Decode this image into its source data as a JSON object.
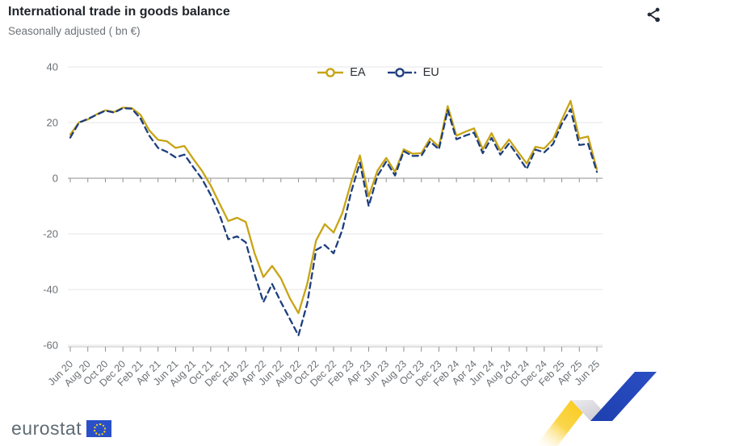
{
  "header": {
    "title": "International trade in goods balance",
    "subtitle": "Seasonally adjusted ( bn €)"
  },
  "toolbar": {
    "share_icon": "share"
  },
  "footer": {
    "logo_text": "eurostat",
    "logo_flag": "eu-flag"
  },
  "colors": {
    "ea_line": "#c8a415",
    "eu_line": "#1e3e7e",
    "grid": "#e4e4e4",
    "zero_axis": "#8f8f8f",
    "bottom_axis": "#c2c2c2",
    "tick": "#8f8f8f",
    "axis_text": "#6b6f73",
    "ribbon_yellow": "#f9c810",
    "ribbon_blue": "#2b4ec4",
    "ribbon_grey": "#c3c3ca",
    "icon_dark": "#242b38"
  },
  "chart_data": {
    "type": "line",
    "title": "International trade in goods balance",
    "subtitle": "Seasonally adjusted ( bn €)",
    "xlabel": "",
    "ylabel": "bn €",
    "ylim": [
      -60,
      40
    ],
    "yticks": [
      40,
      20,
      0,
      -20,
      -40,
      -60
    ],
    "grid": true,
    "legend_position": "top-center",
    "x_tick_every": 2,
    "x": [
      "Jun 20",
      "Jul 20",
      "Aug 20",
      "Sep 20",
      "Oct 20",
      "Nov 20",
      "Dec 20",
      "Jan 21",
      "Feb 21",
      "Mar 21",
      "Apr 21",
      "May 21",
      "Jun 21",
      "Jul 21",
      "Aug 21",
      "Sep 21",
      "Oct 21",
      "Nov 21",
      "Dec 21",
      "Jan 22",
      "Feb 22",
      "Mar 22",
      "Apr 22",
      "May 22",
      "Jun 22",
      "Jul 22",
      "Aug 22",
      "Sep 22",
      "Oct 22",
      "Nov 22",
      "Dec 22",
      "Jan 23",
      "Feb 23",
      "Mar 23",
      "Apr 23",
      "May 23",
      "Jun 23",
      "Jul 23",
      "Aug 23",
      "Sep 23",
      "Oct 23",
      "Nov 23",
      "Dec 23",
      "Jan 24",
      "Feb 24",
      "Mar 24",
      "Apr 24",
      "May 24",
      "Jun 24",
      "Jul 24",
      "Aug 24",
      "Sep 24",
      "Oct 24",
      "Nov 24",
      "Dec 24",
      "Jan 25",
      "Feb 25",
      "Mar 25",
      "Apr 25",
      "May 25",
      "Jun 25"
    ],
    "series": [
      {
        "name": "EA",
        "style": "solid",
        "color": "#c8a415",
        "values": [
          15.7,
          20.1,
          21.1,
          23.0,
          24.4,
          23.8,
          25.4,
          25.2,
          22.8,
          17.2,
          13.8,
          13.3,
          10.9,
          11.6,
          7.0,
          2.7,
          -2.6,
          -9.0,
          -15.4,
          -14.2,
          -15.7,
          -27.0,
          -35.5,
          -31.5,
          -36.0,
          -43.0,
          -48.5,
          -38.0,
          -22.4,
          -16.5,
          -19.5,
          -12.5,
          -1.5,
          8.2,
          -6.5,
          2.7,
          7.3,
          2.3,
          10.4,
          8.8,
          9.0,
          14.3,
          11.3,
          25.9,
          15.3,
          16.7,
          17.9,
          10.4,
          16.2,
          9.9,
          13.9,
          9.5,
          5.3,
          11.3,
          10.7,
          14.0,
          21.0,
          27.8,
          14.3,
          15.0,
          3.2
        ]
      },
      {
        "name": "EU",
        "style": "dashed",
        "color": "#1e3e7e",
        "values": [
          14.6,
          20.0,
          21.3,
          22.8,
          24.3,
          23.6,
          25.2,
          25.0,
          21.5,
          15.3,
          10.9,
          9.5,
          7.5,
          8.5,
          4.1,
          -0.2,
          -6.0,
          -13.0,
          -21.9,
          -20.9,
          -23.0,
          -34.5,
          -44.5,
          -38.0,
          -44.5,
          -50.5,
          -56.5,
          -45.0,
          -25.8,
          -24.0,
          -27.0,
          -18.5,
          -5.0,
          5.6,
          -10.0,
          0.8,
          6.0,
          1.0,
          9.7,
          8.0,
          8.1,
          13.2,
          10.4,
          24.5,
          14.0,
          15.3,
          16.4,
          9.0,
          14.5,
          8.5,
          12.5,
          8.0,
          3.3,
          10.3,
          9.3,
          12.3,
          19.5,
          24.8,
          11.9,
          12.4,
          2.3
        ]
      }
    ]
  }
}
